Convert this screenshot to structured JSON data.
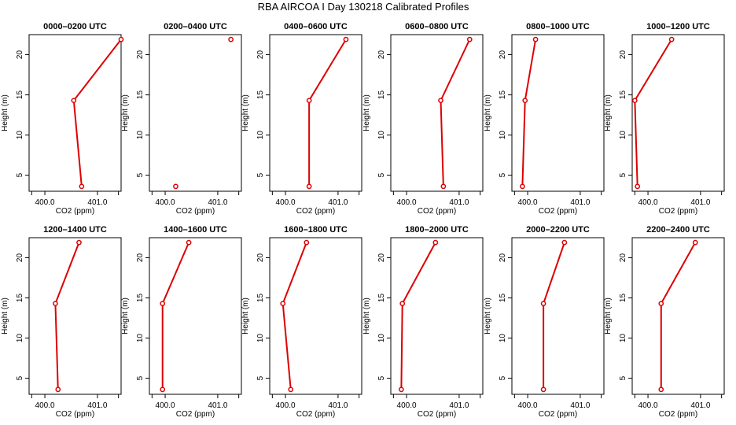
{
  "main_title": "RBA AIRCOA I  Day 130218  Calibrated Profiles",
  "colors": {
    "series": "#dd0000",
    "axes": "#000000",
    "background": "#ffffff"
  },
  "chart_data": [
    {
      "type": "line",
      "title": "0000–0200 UTC",
      "xlabel": "CO2 (ppm)",
      "ylabel": "Height (m)",
      "xlim": [
        399.7,
        401.45
      ],
      "ylim": [
        3,
        22.5
      ],
      "xticks": [
        400.0,
        401.0
      ],
      "xtick_labels": [
        "400.0",
        "401.0"
      ],
      "yticks": [
        5,
        10,
        15,
        20
      ],
      "ytick_labels": [
        "5",
        "10",
        "15",
        "20"
      ],
      "x": [
        400.7,
        400.55,
        401.45
      ],
      "y": [
        3.6,
        14.3,
        21.9
      ]
    },
    {
      "type": "line",
      "title": "0200–0400 UTC",
      "xlabel": "CO2 (ppm)",
      "ylabel": "Height (m)",
      "xlim": [
        399.7,
        401.45
      ],
      "ylim": [
        3,
        22.5
      ],
      "xticks": [
        400.0,
        401.0
      ],
      "xtick_labels": [
        "400.0",
        "401.0"
      ],
      "yticks": [
        5,
        10,
        15,
        20
      ],
      "ytick_labels": [
        "5",
        "10",
        "15",
        "20"
      ],
      "x": [
        400.2,
        401.25
      ],
      "y": [
        3.6,
        21.9
      ],
      "show_line": false
    },
    {
      "type": "line",
      "title": "0400–0600 UTC",
      "xlabel": "CO2 (ppm)",
      "ylabel": "Height (m)",
      "xlim": [
        399.7,
        401.45
      ],
      "ylim": [
        3,
        22.5
      ],
      "xticks": [
        400.0,
        401.0
      ],
      "xtick_labels": [
        "400.0",
        "401.0"
      ],
      "yticks": [
        5,
        10,
        15,
        20
      ],
      "ytick_labels": [
        "5",
        "10",
        "15",
        "20"
      ],
      "x": [
        400.45,
        400.45,
        401.15
      ],
      "y": [
        3.6,
        14.3,
        21.9
      ]
    },
    {
      "type": "line",
      "title": "0600–0800 UTC",
      "xlabel": "CO2 (ppm)",
      "ylabel": "Height (m)",
      "xlim": [
        399.7,
        401.45
      ],
      "ylim": [
        3,
        22.5
      ],
      "xticks": [
        400.0,
        401.0
      ],
      "xtick_labels": [
        "400.0",
        "401.0"
      ],
      "yticks": [
        5,
        10,
        15,
        20
      ],
      "ytick_labels": [
        "5",
        "10",
        "15",
        "20"
      ],
      "x": [
        400.7,
        400.65,
        401.2
      ],
      "y": [
        3.6,
        14.3,
        21.9
      ]
    },
    {
      "type": "line",
      "title": "0800–1000 UTC",
      "xlabel": "CO2 (ppm)",
      "ylabel": "Height (m)",
      "xlim": [
        399.7,
        401.45
      ],
      "ylim": [
        3,
        22.5
      ],
      "xticks": [
        400.0,
        401.0
      ],
      "xtick_labels": [
        "400.0",
        "401.0"
      ],
      "yticks": [
        5,
        10,
        15,
        20
      ],
      "ytick_labels": [
        "5",
        "10",
        "15",
        "20"
      ],
      "x": [
        399.9,
        399.95,
        400.15
      ],
      "y": [
        3.6,
        14.3,
        21.9
      ]
    },
    {
      "type": "line",
      "title": "1000–1200 UTC",
      "xlabel": "CO2 (ppm)",
      "ylabel": "Height (m)",
      "xlim": [
        399.7,
        401.45
      ],
      "ylim": [
        3,
        22.5
      ],
      "xticks": [
        400.0,
        401.0
      ],
      "xtick_labels": [
        "400.0",
        "401.0"
      ],
      "yticks": [
        5,
        10,
        15,
        20
      ],
      "ytick_labels": [
        "5",
        "10",
        "15",
        "20"
      ],
      "x": [
        399.8,
        399.75,
        400.45
      ],
      "y": [
        3.6,
        14.3,
        21.9
      ]
    },
    {
      "type": "line",
      "title": "1200–1400 UTC",
      "xlabel": "CO2 (ppm)",
      "ylabel": "Height (m)",
      "xlim": [
        399.7,
        401.45
      ],
      "ylim": [
        3,
        22.5
      ],
      "xticks": [
        400.0,
        401.0
      ],
      "xtick_labels": [
        "400.0",
        "401.0"
      ],
      "yticks": [
        5,
        10,
        15,
        20
      ],
      "ytick_labels": [
        "5",
        "10",
        "15",
        "20"
      ],
      "x": [
        400.25,
        400.2,
        400.65
      ],
      "y": [
        3.6,
        14.3,
        21.9
      ]
    },
    {
      "type": "line",
      "title": "1400–1600 UTC",
      "xlabel": "CO2 (ppm)",
      "ylabel": "Height (m)",
      "xlim": [
        399.7,
        401.45
      ],
      "ylim": [
        3,
        22.5
      ],
      "xticks": [
        400.0,
        401.0
      ],
      "xtick_labels": [
        "400.0",
        "401.0"
      ],
      "yticks": [
        5,
        10,
        15,
        20
      ],
      "ytick_labels": [
        "5",
        "10",
        "15",
        "20"
      ],
      "x": [
        399.95,
        399.95,
        400.45
      ],
      "y": [
        3.6,
        14.3,
        21.9
      ]
    },
    {
      "type": "line",
      "title": "1600–1800 UTC",
      "xlabel": "CO2 (ppm)",
      "ylabel": "Height (m)",
      "xlim": [
        399.7,
        401.45
      ],
      "ylim": [
        3,
        22.5
      ],
      "xticks": [
        400.0,
        401.0
      ],
      "xtick_labels": [
        "400.0",
        "401.0"
      ],
      "yticks": [
        5,
        10,
        15,
        20
      ],
      "ytick_labels": [
        "5",
        "10",
        "15",
        "20"
      ],
      "x": [
        400.1,
        399.95,
        400.4
      ],
      "y": [
        3.6,
        14.3,
        21.9
      ]
    },
    {
      "type": "line",
      "title": "1800–2000 UTC",
      "xlabel": "CO2 (ppm)",
      "ylabel": "Height (m)",
      "xlim": [
        399.7,
        401.45
      ],
      "ylim": [
        3,
        22.5
      ],
      "xticks": [
        400.0,
        401.0
      ],
      "xtick_labels": [
        "400.0",
        "401.0"
      ],
      "yticks": [
        5,
        10,
        15,
        20
      ],
      "ytick_labels": [
        "5",
        "10",
        "15",
        "20"
      ],
      "x": [
        399.9,
        399.92,
        400.55
      ],
      "y": [
        3.6,
        14.3,
        21.9
      ]
    },
    {
      "type": "line",
      "title": "2000–2200 UTC",
      "xlabel": "CO2 (ppm)",
      "ylabel": "Height (m)",
      "xlim": [
        399.7,
        401.45
      ],
      "ylim": [
        3,
        22.5
      ],
      "xticks": [
        400.0,
        401.0
      ],
      "xtick_labels": [
        "400.0",
        "401.0"
      ],
      "yticks": [
        5,
        10,
        15,
        20
      ],
      "ytick_labels": [
        "5",
        "10",
        "15",
        "20"
      ],
      "x": [
        400.3,
        400.3,
        400.7
      ],
      "y": [
        3.6,
        14.3,
        21.9
      ]
    },
    {
      "type": "line",
      "title": "2200–2400 UTC",
      "xlabel": "CO2 (ppm)",
      "ylabel": "Height (m)",
      "xlim": [
        399.7,
        401.45
      ],
      "ylim": [
        3,
        22.5
      ],
      "xticks": [
        400.0,
        401.0
      ],
      "xtick_labels": [
        "400.0",
        "401.0"
      ],
      "yticks": [
        5,
        10,
        15,
        20
      ],
      "ytick_labels": [
        "5",
        "10",
        "15",
        "20"
      ],
      "x": [
        400.25,
        400.25,
        400.9
      ],
      "y": [
        3.6,
        14.3,
        21.9
      ]
    }
  ]
}
